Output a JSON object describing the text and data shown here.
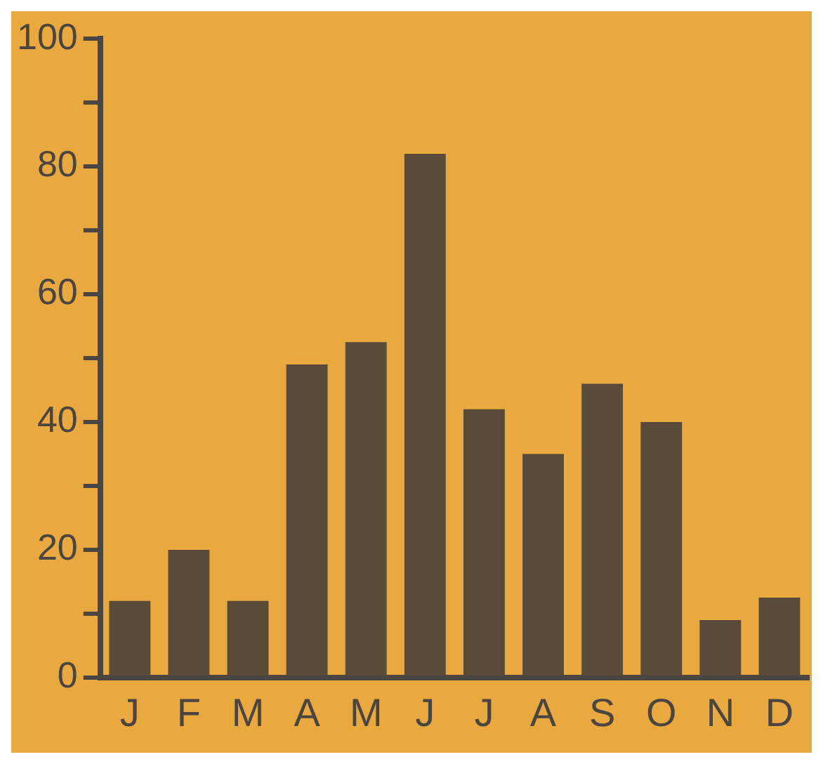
{
  "chart_data": {
    "type": "bar",
    "categories": [
      "J",
      "F",
      "M",
      "A",
      "M",
      "J",
      "J",
      "A",
      "S",
      "O",
      "N",
      "D"
    ],
    "values": [
      12,
      20,
      12,
      49,
      52.5,
      82,
      42,
      35,
      46,
      40,
      9,
      12.5
    ],
    "color": "#5a4a3a",
    "ylim": [
      0,
      100
    ],
    "yticks": [
      0,
      {
        "value": 10,
        "label": null
      },
      20,
      {
        "value": 30,
        "label": null
      },
      40,
      {
        "value": 50,
        "label": null
      },
      60,
      {
        "value": 70,
        "label": null
      },
      80,
      {
        "value": 90,
        "label": null
      },
      100
    ],
    "grid": false
  }
}
